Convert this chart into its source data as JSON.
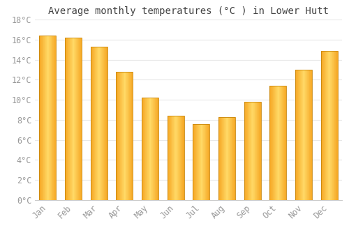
{
  "months": [
    "Jan",
    "Feb",
    "Mar",
    "Apr",
    "May",
    "Jun",
    "Jul",
    "Aug",
    "Sep",
    "Oct",
    "Nov",
    "Dec"
  ],
  "values": [
    16.4,
    16.2,
    15.3,
    12.8,
    10.2,
    8.4,
    7.6,
    8.3,
    9.8,
    11.4,
    13.0,
    14.9
  ],
  "bar_color_left": "#F5A623",
  "bar_color_center": "#FFD966",
  "bar_color_right": "#F5A623",
  "bar_edge_color": "#C8860A",
  "background_color": "#FFFFFF",
  "plot_bg_color": "#FFFFFF",
  "grid_color": "#E8E8E8",
  "title": "Average monthly temperatures (°C ) in Lower Hutt",
  "title_fontsize": 10,
  "tick_label_color": "#999999",
  "tick_label_fontsize": 8.5,
  "ylim": [
    0,
    18
  ],
  "ytick_step": 2,
  "font_family": "monospace",
  "bar_width": 0.65,
  "figsize": [
    5.0,
    3.5
  ],
  "dpi": 100
}
